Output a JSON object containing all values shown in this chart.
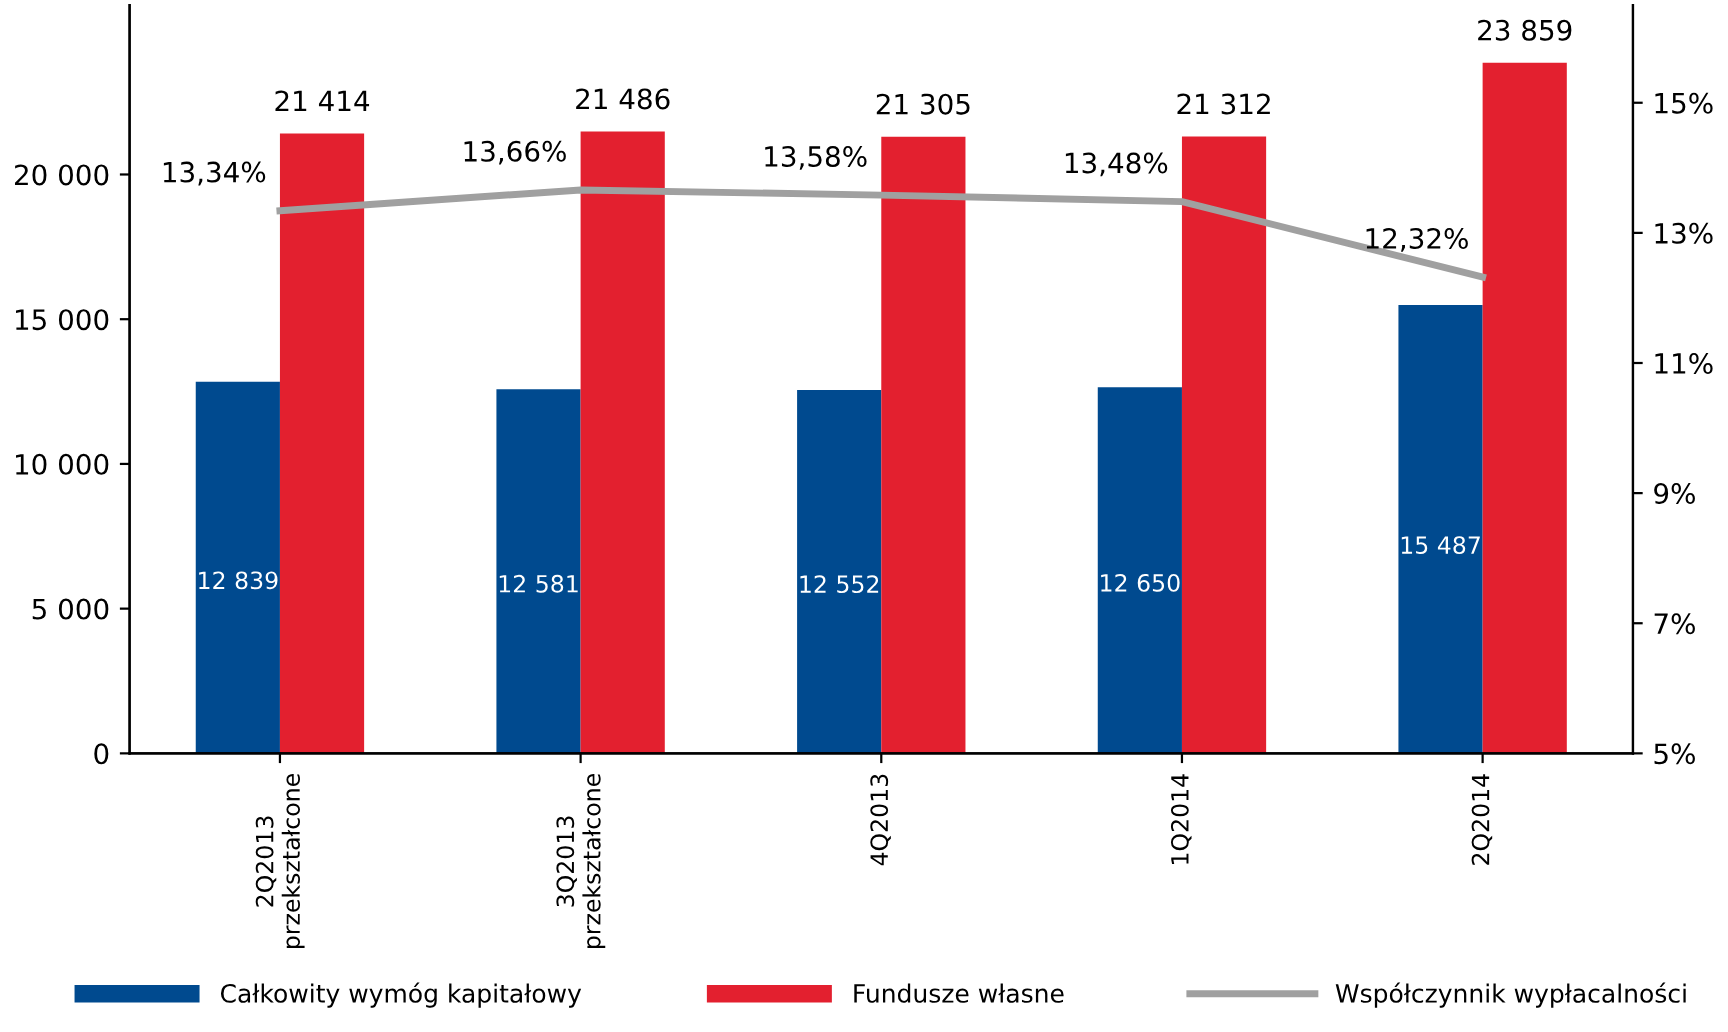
{
  "chart_data": {
    "type": "bar",
    "categories": [
      "2Q2013\nprzekształcone",
      "3Q2013\nprzekształcone",
      "4Q2013",
      "1Q2014",
      "2Q2014"
    ],
    "series": [
      {
        "name": "Całkowity wymóg kapitałowy",
        "color": "#004a8f",
        "values": [
          12839,
          12581,
          12552,
          12650,
          15487
        ],
        "value_labels": [
          "12 839",
          "12 581",
          "12 552",
          "12 650",
          "15 487"
        ]
      },
      {
        "name": "Fundusze własne",
        "color": "#e3202f",
        "values": [
          21414,
          21486,
          21305,
          21312,
          23859
        ],
        "value_labels": [
          "21 414",
          "21 486",
          "21 305",
          "21 312",
          "23 859"
        ]
      },
      {
        "name": "Współczynnik wypłacalności",
        "type": "line",
        "axis": "y2",
        "color": "#a0a0a0",
        "values": [
          13.34,
          13.66,
          13.58,
          13.48,
          12.32
        ],
        "value_labels": [
          "13,34%",
          "13,66%",
          "13,58%",
          "13,48%",
          "12,32%"
        ]
      }
    ],
    "ylim": [
      0,
      25850
    ],
    "yticks": [
      0,
      {
        "value": 5000,
        "label": "5 000"
      },
      {
        "value": 10000,
        "label": "10 000"
      },
      {
        "value": 15000,
        "label": "15 000"
      },
      {
        "value": 20000,
        "label": "20 000"
      }
    ],
    "y2lim": [
      5,
      16.5
    ],
    "y2ticks": [
      {
        "value": 5,
        "label": "5%"
      },
      {
        "value": 7,
        "label": "7%"
      },
      {
        "value": 9,
        "label": "9%"
      },
      {
        "value": 11,
        "label": "11%"
      },
      {
        "value": 13,
        "label": "13%"
      },
      {
        "value": 15,
        "label": "15%"
      }
    ],
    "grid": false,
    "legend": "bottom",
    "line_style": "solid",
    "marker": "none"
  }
}
